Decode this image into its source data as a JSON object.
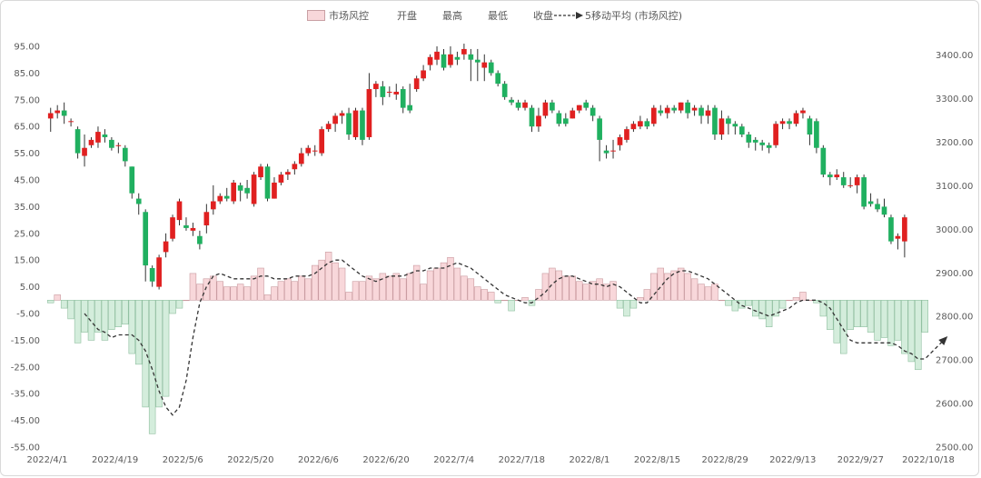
{
  "chart_data": {
    "type": "candlestick+bar+line",
    "legend": {
      "bar_series": "市场风控",
      "open": "开盘",
      "high": "最高",
      "low": "最低",
      "close": "收盘",
      "ma": "5移动平均 (市场风控)"
    },
    "left_axis": {
      "ticks": [
        "95.00",
        "85.00",
        "75.00",
        "65.00",
        "55.00",
        "45.00",
        "35.00",
        "25.00",
        "15.00",
        "5.00",
        "-5.00",
        "-15.00",
        "-25.00",
        "-35.00",
        "-45.00",
        "-55.00"
      ],
      "ylim": [
        -55,
        95
      ]
    },
    "right_axis": {
      "ticks": [
        "3400.00",
        "3300.00",
        "3200.00",
        "3100.00",
        "3000.00",
        "2900.00",
        "2800.00",
        "2700.00",
        "2600.00",
        "2500.00"
      ],
      "ylim": [
        2500,
        3420
      ]
    },
    "x_ticks": [
      "2022/4/1",
      "2022/4/19",
      "2022/5/6",
      "2022/5/20",
      "2022/6/6",
      "2022/6/20",
      "2022/7/4",
      "2022/7/18",
      "2022/8/1",
      "2022/8/15",
      "2022/8/29",
      "2022/9/13",
      "2022/9/27",
      "2022/10/18"
    ],
    "up_color": "#e02020",
    "down_color": "#20b060",
    "bar_pos_color": "#f8d7da",
    "bar_neg_color": "#d4eddc",
    "risk_values": [
      -1,
      2,
      -3,
      -7,
      -16,
      -12,
      -15,
      -12,
      -15,
      -11,
      -10,
      -9,
      -20,
      -24,
      -40,
      -50,
      -40,
      -36,
      -5,
      -3,
      0,
      10,
      6,
      8,
      9,
      7,
      5,
      5,
      6,
      5,
      9,
      12,
      2,
      5,
      7,
      8,
      7,
      9,
      8,
      13,
      15,
      18,
      14,
      12,
      3,
      7,
      7,
      9,
      8,
      10,
      9,
      10,
      8,
      10,
      13,
      6,
      11,
      12,
      14,
      16,
      12,
      9,
      8,
      5,
      4,
      3,
      -1,
      0,
      -4,
      0,
      1,
      -2,
      4,
      10,
      12,
      11,
      9,
      9,
      7,
      6,
      7,
      8,
      6,
      7,
      -3,
      -6,
      -3,
      1,
      4,
      10,
      12,
      10,
      11,
      12,
      10,
      8,
      6,
      5,
      6,
      0,
      -2,
      -4,
      -3,
      -2,
      -6,
      -7,
      -10,
      -6,
      -3,
      0,
      1,
      3,
      0,
      -1,
      -6,
      -11,
      -16,
      -20,
      -11,
      -10,
      -10,
      -12,
      -15,
      -14,
      -17,
      -15,
      -20,
      -23,
      -26,
      -12
    ],
    "ma5_values": [
      null,
      null,
      null,
      null,
      null,
      -5,
      -8,
      -11,
      -12,
      -14,
      -13,
      -13,
      -13,
      -15,
      -19,
      -26,
      -34,
      -40,
      -43,
      -40,
      -30,
      -14,
      -1,
      5,
      9,
      10,
      9,
      8,
      8,
      8,
      8,
      9,
      9,
      8,
      8,
      8,
      9,
      9,
      9,
      10,
      12,
      14,
      15,
      15,
      13,
      11,
      9,
      8,
      7,
      8,
      9,
      9,
      9,
      10,
      11,
      11,
      12,
      12,
      12,
      13,
      14,
      13,
      12,
      10,
      8,
      6,
      4,
      2,
      1,
      0,
      -1,
      -1,
      1,
      3,
      6,
      8,
      9,
      9,
      8,
      7,
      6,
      6,
      5,
      6,
      5,
      3,
      1,
      -1,
      -1,
      2,
      5,
      8,
      10,
      11,
      11,
      10,
      9,
      8,
      6,
      4,
      2,
      0,
      -2,
      -3,
      -4,
      -5,
      -6,
      -5,
      -4,
      -3,
      -1,
      0,
      0,
      0,
      -1,
      -3,
      -7,
      -11,
      -15,
      -16,
      -16,
      -16,
      -16,
      -16,
      -16,
      -17,
      -19,
      -20,
      -22,
      -22
    ],
    "candles": [
      [
        68,
        70,
        63,
        72
      ],
      [
        70,
        71,
        68,
        73
      ],
      [
        71,
        69,
        66,
        74
      ],
      [
        67,
        67,
        65,
        68
      ],
      [
        64,
        55,
        53,
        65
      ],
      [
        54,
        57,
        50,
        62
      ],
      [
        58,
        60,
        57,
        61
      ],
      [
        59,
        63,
        57,
        65
      ],
      [
        62,
        61,
        59,
        64
      ],
      [
        60,
        57,
        56,
        61
      ],
      [
        58,
        58,
        55,
        59
      ],
      [
        57,
        52,
        50,
        58
      ],
      [
        50,
        40,
        38,
        50
      ],
      [
        38,
        36,
        32,
        40
      ],
      [
        33,
        13,
        7,
        34
      ],
      [
        12,
        7,
        5,
        13
      ],
      [
        5,
        16,
        4,
        17
      ],
      [
        18,
        22,
        16,
        25
      ],
      [
        23,
        31,
        22,
        32
      ],
      [
        30,
        37,
        28,
        38
      ],
      [
        28,
        27,
        26,
        31
      ],
      [
        26,
        27,
        24,
        29
      ],
      [
        24,
        21,
        19,
        26
      ],
      [
        28,
        33,
        25,
        36
      ],
      [
        34,
        37,
        32,
        43
      ],
      [
        37,
        39,
        36,
        40
      ],
      [
        39,
        38,
        37,
        42
      ],
      [
        37,
        44,
        36,
        45
      ],
      [
        43,
        41,
        37,
        44
      ],
      [
        42,
        40,
        38,
        45
      ],
      [
        36,
        47,
        35,
        48
      ],
      [
        46,
        50,
        45,
        51
      ],
      [
        50,
        38,
        37,
        51
      ],
      [
        38,
        44,
        38,
        46
      ],
      [
        44,
        47,
        43,
        48
      ],
      [
        47,
        48,
        45,
        49
      ],
      [
        49,
        51,
        47,
        52
      ],
      [
        51,
        55,
        50,
        57
      ],
      [
        55,
        57,
        54,
        58
      ],
      [
        56,
        56,
        54,
        58
      ],
      [
        55,
        64,
        54,
        65
      ],
      [
        64,
        66,
        63,
        67
      ],
      [
        66,
        69,
        63,
        70
      ],
      [
        69,
        70,
        66,
        71
      ],
      [
        70,
        62,
        60,
        72
      ],
      [
        61,
        71,
        60,
        72
      ],
      [
        71,
        60,
        58,
        72
      ],
      [
        61,
        79,
        60,
        85
      ],
      [
        79,
        81,
        76,
        82
      ],
      [
        80,
        76,
        73,
        82
      ],
      [
        78,
        78,
        76,
        80
      ],
      [
        77,
        78,
        75,
        81
      ],
      [
        79,
        72,
        70,
        80
      ],
      [
        73,
        71,
        70,
        81
      ],
      [
        79,
        83,
        78,
        84
      ],
      [
        83,
        86,
        82,
        88
      ],
      [
        88,
        91,
        86,
        92
      ],
      [
        90,
        93,
        88,
        95
      ],
      [
        92,
        87,
        86,
        94
      ],
      [
        88,
        92,
        87,
        95
      ],
      [
        91,
        90,
        88,
        93
      ],
      [
        92,
        94,
        90,
        96
      ],
      [
        92,
        90,
        82,
        94
      ],
      [
        90,
        89,
        82,
        94
      ],
      [
        87,
        89,
        82,
        92
      ],
      [
        89,
        85,
        84,
        90
      ],
      [
        85,
        81,
        80,
        86
      ],
      [
        81,
        76,
        75,
        82
      ],
      [
        75,
        74,
        73,
        76
      ],
      [
        74,
        72,
        71,
        75
      ],
      [
        72,
        74,
        71,
        75
      ],
      [
        72,
        65,
        63,
        73
      ],
      [
        65,
        69,
        63,
        72
      ],
      [
        69,
        74,
        68,
        75
      ],
      [
        74,
        71,
        70,
        75
      ],
      [
        70,
        66,
        65,
        71
      ],
      [
        68,
        66,
        65,
        70
      ],
      [
        68,
        71,
        68,
        72
      ],
      [
        71,
        73,
        70,
        73
      ],
      [
        74,
        72,
        71,
        75
      ],
      [
        72,
        69,
        67,
        73
      ],
      [
        68,
        60,
        52,
        69
      ],
      [
        56,
        55,
        53,
        58
      ],
      [
        56,
        56,
        53,
        60
      ],
      [
        58,
        61,
        56,
        62
      ],
      [
        60,
        64,
        59,
        65
      ],
      [
        64,
        66,
        63,
        67
      ],
      [
        65,
        67,
        64,
        69
      ],
      [
        67,
        65,
        64,
        68
      ],
      [
        66,
        72,
        65,
        73
      ],
      [
        71,
        70,
        69,
        73
      ],
      [
        70,
        72,
        68,
        73
      ],
      [
        72,
        71,
        70,
        73
      ],
      [
        71,
        74,
        70,
        74
      ],
      [
        74,
        70,
        68,
        75
      ],
      [
        71,
        72,
        69,
        73
      ],
      [
        72,
        69,
        66,
        73
      ],
      [
        69,
        71,
        66,
        73
      ],
      [
        72,
        62,
        60,
        73
      ],
      [
        62,
        68,
        60,
        71
      ],
      [
        68,
        66,
        62,
        69
      ],
      [
        66,
        65,
        62,
        67
      ],
      [
        65,
        62,
        61,
        66
      ],
      [
        62,
        59,
        57,
        63
      ],
      [
        60,
        59,
        56,
        61
      ],
      [
        59,
        58,
        56,
        60
      ],
      [
        58,
        57,
        55,
        59
      ],
      [
        58,
        66,
        57,
        67
      ],
      [
        66,
        67,
        64,
        68
      ],
      [
        67,
        66,
        64,
        68
      ],
      [
        66,
        70,
        65,
        71
      ],
      [
        70,
        71,
        68,
        72
      ],
      [
        68,
        62,
        58,
        69
      ],
      [
        67,
        57,
        55,
        68
      ],
      [
        57,
        47,
        46,
        58
      ],
      [
        47,
        46,
        43,
        48
      ],
      [
        46,
        47,
        45,
        49
      ],
      [
        46,
        43,
        42,
        48
      ],
      [
        43,
        43,
        42,
        46
      ],
      [
        43,
        46,
        40,
        47
      ],
      [
        46,
        35,
        34,
        47
      ],
      [
        37,
        36,
        35,
        40
      ],
      [
        36,
        34,
        33,
        38
      ],
      [
        35,
        32,
        31,
        38
      ],
      [
        31,
        22,
        21,
        32
      ],
      [
        23,
        24,
        19,
        25
      ],
      [
        22,
        31,
        16,
        32
      ]
    ]
  }
}
